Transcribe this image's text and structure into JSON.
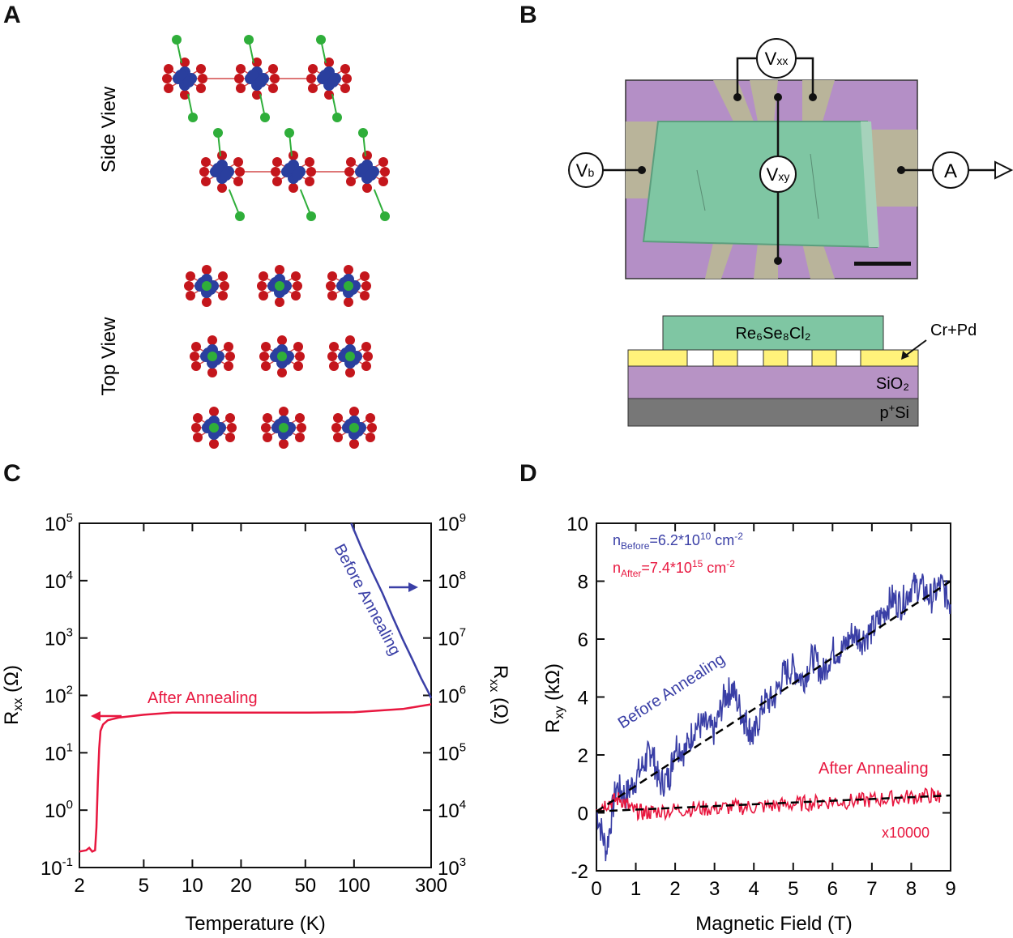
{
  "panel_letters": {
    "a": "A",
    "b": "B",
    "c": "C",
    "d": "D"
  },
  "panel_a": {
    "side_view_label": "Side View",
    "top_view_label": "Top View",
    "colors": {
      "re": "#2a3f9e",
      "se": "#c4161c",
      "cl": "#2fae3a",
      "bond": "#d44a4a"
    }
  },
  "panel_b": {
    "meters": {
      "vxx": "V",
      "vxx_sub": "xx",
      "vb": "V",
      "vb_sub": "b",
      "vxy": "V",
      "vxy_sub": "xy",
      "ammeter": "A"
    },
    "stack": {
      "flake": "Re₆Se₈Cl₂",
      "contact": "Cr+Pd",
      "oxide": "SiO₂",
      "substrate_p": "p",
      "substrate_sup": "+",
      "substrate_si": "Si"
    },
    "colors": {
      "flake": "#86c8a2",
      "purple": "#b793c5",
      "gold": "#fff27a",
      "substrate": "#777777",
      "device_bg": "#b28fc4"
    }
  },
  "chart_data": [
    {
      "type": "line",
      "panel": "C",
      "xlabel": "Temperature (K)",
      "ylabel_left": "R",
      "ylabel_left_sub": "xx",
      "ylabel_left_unit": " (Ω)",
      "ylabel_right": "R",
      "ylabel_right_sub": "xx",
      "ylabel_right_unit": " (Ω)",
      "x_scale": "log",
      "xlim": [
        2,
        300
      ],
      "x_ticks": [
        2,
        5,
        10,
        20,
        50,
        100,
        300
      ],
      "left_scale": "log",
      "left_ylim": [
        0.1,
        100000
      ],
      "left_ticks": [
        "10^-1",
        "10^0",
        "10^1",
        "10^2",
        "10^3",
        "10^4",
        "10^5"
      ],
      "right_scale": "log",
      "right_ylim": [
        1000,
        1000000000
      ],
      "right_ticks": [
        "10^3",
        "10^4",
        "10^5",
        "10^6",
        "10^7",
        "10^8",
        "10^9"
      ],
      "series": [
        {
          "name": "After Annealing",
          "axis": "left",
          "color": "#e8173f",
          "x": [
            2.0,
            2.2,
            2.3,
            2.4,
            2.5,
            2.55,
            2.6,
            2.65,
            2.7,
            2.8,
            3.0,
            3.5,
            5.0,
            7.5,
            10,
            20,
            50,
            100,
            200,
            300
          ],
          "y": [
            0.19,
            0.2,
            0.22,
            0.19,
            0.2,
            0.5,
            3.0,
            12,
            24,
            31,
            37,
            41,
            46,
            50,
            50,
            50,
            50,
            51,
            58,
            70
          ]
        },
        {
          "name": "Before Annealing",
          "axis": "right",
          "color": "#3a3fa6",
          "x": [
            96,
            110,
            130,
            150,
            175,
            200,
            230,
            260,
            290,
            300
          ],
          "y": [
            1000000000,
            400000000,
            140000000,
            60000000,
            22000000,
            9500000,
            4200000,
            2000000,
            1100000,
            900000
          ]
        }
      ],
      "annotations": {
        "after": "After Annealing",
        "before": "Before Annealing"
      }
    },
    {
      "type": "line",
      "panel": "D",
      "xlabel": "Magnetic Field (T)",
      "ylabel": "R",
      "ylabel_sub": "xy",
      "ylabel_unit": " (kΩ)",
      "xlim": [
        0,
        9
      ],
      "ylim": [
        -2,
        10
      ],
      "x_ticks": [
        0,
        1,
        2,
        3,
        4,
        5,
        6,
        7,
        8,
        9
      ],
      "y_ticks": [
        -2,
        0,
        2,
        4,
        6,
        8,
        10
      ],
      "series": [
        {
          "name": "Before Annealing",
          "color": "#3a3fa6",
          "x": [
            0,
            0.25,
            0.5,
            0.75,
            1.0,
            1.25,
            1.4,
            1.6,
            1.85,
            2.0,
            2.25,
            2.5,
            2.75,
            3.0,
            3.25,
            3.45,
            3.7,
            3.85,
            4.0,
            4.25,
            4.5,
            4.75,
            5.0,
            5.25,
            5.5,
            5.75,
            6.0,
            6.25,
            6.5,
            6.75,
            7.0,
            7.25,
            7.5,
            7.75,
            8.0,
            8.25,
            8.5,
            8.75,
            9.0
          ],
          "y": [
            0.1,
            -1.3,
            0.9,
            0.6,
            1.2,
            1.8,
            2.2,
            1.0,
            1.2,
            2.4,
            2.1,
            3.0,
            3.0,
            2.8,
            4.0,
            4.3,
            3.4,
            3.0,
            2.6,
            3.8,
            3.9,
            4.8,
            5.0,
            4.6,
            5.4,
            4.8,
            5.6,
            5.6,
            6.2,
            6.0,
            6.3,
            6.8,
            7.4,
            7.2,
            7.8,
            7.8,
            7.4,
            7.9,
            7.2
          ]
        },
        {
          "name": "After Annealing",
          "color": "#e8173f",
          "x": [
            0,
            0.3,
            0.6,
            0.9,
            1.2,
            1.5,
            2.0,
            2.5,
            3.0,
            3.5,
            4.0,
            4.5,
            5.0,
            5.5,
            6.0,
            6.5,
            7.0,
            7.5,
            8.0,
            8.5,
            8.75
          ],
          "y": [
            0.2,
            0.35,
            0.5,
            0.1,
            0.0,
            0.05,
            0.1,
            0.15,
            0.15,
            0.2,
            0.2,
            0.25,
            0.3,
            0.35,
            0.4,
            0.4,
            0.45,
            0.5,
            0.55,
            0.6,
            0.55
          ]
        },
        {
          "name": "fit-before",
          "style": "dashed",
          "color": "#000000",
          "x": [
            0,
            9
          ],
          "y": [
            0.05,
            8.0
          ]
        },
        {
          "name": "fit-after",
          "style": "dashed",
          "color": "#000000",
          "x": [
            0,
            9
          ],
          "y": [
            0.05,
            0.6
          ]
        }
      ],
      "annotations": {
        "n_before_prefix": "n",
        "n_before_sub": "Before",
        "n_before_value": "=6.2*10",
        "n_before_exp": "10",
        "n_before_unit": " cm",
        "n_before_unit_exp": "-2",
        "n_after_prefix": "n",
        "n_after_sub": "After",
        "n_after_value": "=7.4*10",
        "n_after_exp": "15",
        "n_after_unit": " cm",
        "n_after_unit_exp": "-2",
        "before_label": "Before Annealing",
        "after_label": "After Annealing",
        "multiplier": "x10000"
      }
    }
  ]
}
